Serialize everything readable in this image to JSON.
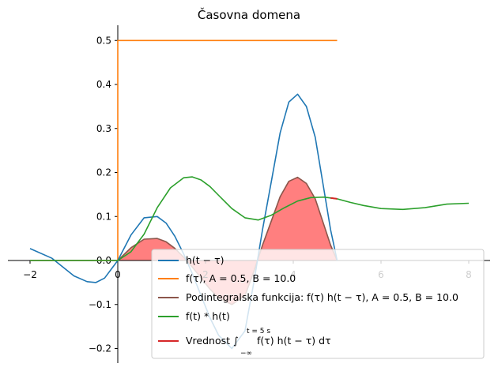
{
  "chart_data": {
    "type": "line",
    "title": "Časovna domena",
    "xlim": [
      -2.2,
      8.4
    ],
    "ylim": [
      -0.235,
      0.535
    ],
    "x_ticks": [
      "−2",
      "0",
      "2",
      "4",
      "6",
      "8"
    ],
    "x_tick_values": [
      -2,
      0,
      2,
      4,
      6,
      8
    ],
    "y_ticks": [
      "−0.2",
      "−0.1",
      "0.0",
      "0.1",
      "0.2",
      "0.3",
      "0.4",
      "0.5"
    ],
    "y_tick_values": [
      -0.2,
      -0.1,
      0.0,
      0.1,
      0.2,
      0.3,
      0.4,
      0.5
    ],
    "grid": false,
    "legend_position": "lower-right",
    "t_value": 5,
    "series": [
      {
        "name": "h(t − τ)",
        "color": "#1f77b4",
        "x": [
          -2.0,
          -1.5,
          -1.0,
          -0.7,
          -0.5,
          -0.3,
          0.0,
          0.3,
          0.6,
          0.9,
          1.1,
          1.3,
          1.5,
          1.7,
          1.9,
          2.1,
          2.3,
          2.6,
          2.9,
          3.1,
          3.3,
          3.5,
          3.7,
          3.9,
          4.1,
          4.3,
          4.5,
          4.7,
          4.85,
          5.0
        ],
        "y": [
          0.027,
          0.005,
          -0.035,
          -0.048,
          -0.05,
          -0.04,
          0.0,
          0.058,
          0.097,
          0.1,
          0.085,
          0.055,
          0.015,
          -0.03,
          -0.08,
          -0.13,
          -0.17,
          -0.2,
          -0.16,
          -0.05,
          0.07,
          0.18,
          0.29,
          0.36,
          0.378,
          0.35,
          0.28,
          0.16,
          0.07,
          0.0
        ]
      },
      {
        "name": "f(τ), A = 0.5, B = 10.0",
        "color": "#ff7f0e",
        "x": [
          -2.0,
          0.0,
          0.0,
          5.0
        ],
        "y": [
          0.0,
          0.0,
          0.5,
          0.5
        ]
      },
      {
        "name": "Podintegralska funkcija: f(τ) h(t − τ), A = 0.5, B = 10.0",
        "color": "#8c564b",
        "fill_color": "#ff0000",
        "x": [
          -2.0,
          0.0,
          0.3,
          0.6,
          0.9,
          1.1,
          1.3,
          1.5,
          1.7,
          1.9,
          2.1,
          2.3,
          2.6,
          2.9,
          3.1,
          3.3,
          3.5,
          3.7,
          3.9,
          4.1,
          4.3,
          4.5,
          4.7,
          4.85,
          5.0
        ],
        "y": [
          0.0,
          0.0,
          0.029,
          0.0485,
          0.05,
          0.0425,
          0.0275,
          0.0075,
          -0.015,
          -0.04,
          -0.065,
          -0.085,
          -0.1,
          -0.08,
          -0.025,
          0.035,
          0.09,
          0.145,
          0.18,
          0.189,
          0.175,
          0.14,
          0.08,
          0.035,
          0.0
        ]
      },
      {
        "name": "f(t) * h(t)",
        "color": "#2ca02c",
        "x": [
          -2.0,
          0.0,
          0.3,
          0.6,
          0.9,
          1.2,
          1.5,
          1.7,
          1.9,
          2.1,
          2.3,
          2.6,
          2.9,
          3.2,
          3.5,
          3.8,
          4.1,
          4.4,
          4.7,
          5.0,
          5.3,
          5.6,
          6.0,
          6.5,
          7.0,
          7.5,
          8.0
        ],
        "y": [
          0.0,
          0.0,
          0.02,
          0.06,
          0.12,
          0.165,
          0.188,
          0.19,
          0.183,
          0.168,
          0.148,
          0.118,
          0.097,
          0.092,
          0.103,
          0.12,
          0.135,
          0.143,
          0.144,
          0.14,
          0.132,
          0.125,
          0.118,
          0.116,
          0.12,
          0.128,
          0.13
        ]
      },
      {
        "name": "Vrednost ∫ f(τ) h(t − τ) dτ",
        "color": "#d62728",
        "x": [
          4.85,
          5.0
        ],
        "y": [
          0.142,
          0.14
        ]
      }
    ],
    "legend_labels": [
      "h(t − τ)",
      "f(τ), A = 0.5, B = 10.0",
      "Podintegralska funkcija: f(τ) h(t − τ), A = 0.5, B = 10.0",
      "f(t) * h(t)",
      "Vrednost ∫",
      "f(τ) h(t − τ) dτ",
      "t = 5 s",
      "−∞"
    ]
  }
}
